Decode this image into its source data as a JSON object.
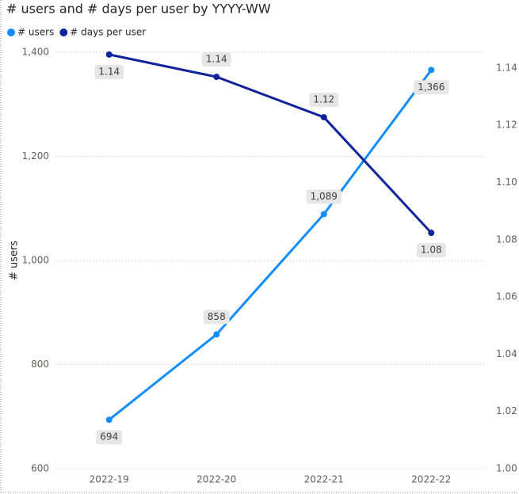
{
  "chart_data": {
    "type": "line",
    "title": "# users and # days per user by YYYY-WW",
    "y_label": "# users",
    "categories": [
      "2022-19",
      "2022-20",
      "2022-21",
      "2022-22"
    ],
    "series": [
      {
        "name": "# users",
        "color": "#118dff",
        "values": [
          694,
          858,
          1089,
          1366
        ],
        "value_labels": [
          "694",
          "858",
          "1,089",
          "1,366"
        ]
      },
      {
        "name": "# days per user",
        "color": "#12239e",
        "axis": "y2",
        "values": [
          1.1447,
          1.1369,
          1.1228,
          1.0824
        ],
        "value_labels": [
          "1.14",
          "1.14",
          "1.12",
          "1.08"
        ]
      }
    ],
    "ylim": [
      600,
      1400
    ],
    "yticks": [
      600,
      800,
      {
        "value": 1000,
        "label": "1,000"
      },
      {
        "value": 1200,
        "label": "1,200"
      },
      {
        "value": 1400,
        "label": "1,400"
      }
    ],
    "y2lim": [
      1.0,
      1.1455
    ],
    "y2ticks": [
      {
        "value": 1.0,
        "label": "1.00"
      },
      {
        "value": 1.02,
        "label": "1.02"
      },
      {
        "value": 1.04,
        "label": "1.04"
      },
      {
        "value": 1.06,
        "label": "1.06"
      },
      {
        "value": 1.08,
        "label": "1.08"
      },
      {
        "value": 1.1,
        "label": "1.10"
      },
      {
        "value": 1.12,
        "label": "1.12"
      },
      {
        "value": 1.14,
        "label": "1.14"
      }
    ],
    "grid": true,
    "legend": "top-left"
  }
}
